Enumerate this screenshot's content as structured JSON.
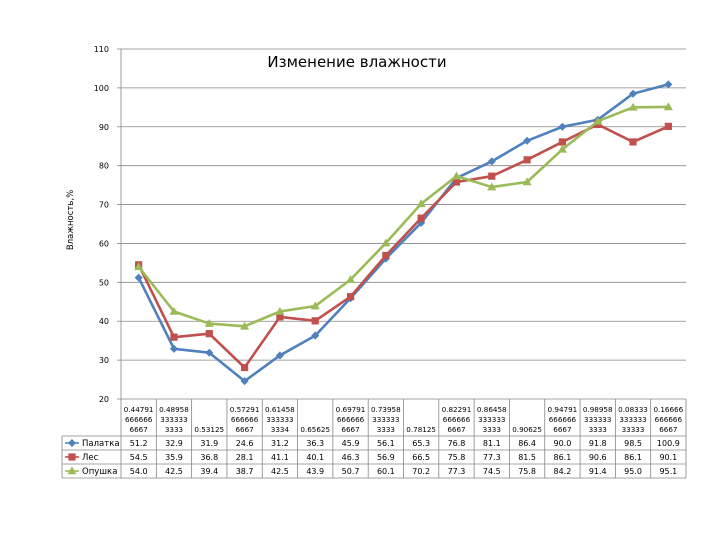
{
  "chart_data": {
    "type": "line",
    "title": "Изменение влажности",
    "ylabel": "Влажность,%",
    "xlabel": "",
    "ylim": [
      20,
      110
    ],
    "yticks": [
      "110",
      "100",
      "90",
      "80",
      "70",
      "60",
      "50",
      "40",
      "30",
      "20"
    ],
    "grid": true,
    "legend": "data-table",
    "categories": [
      [
        "0.44791",
        "666666",
        "6667"
      ],
      [
        "0.48958",
        "333333",
        "3333"
      ],
      [
        "0.53125"
      ],
      [
        "0.57291",
        "666666",
        "6667"
      ],
      [
        "0.61458",
        "333333",
        "3334"
      ],
      [
        "0.65625"
      ],
      [
        "0.69791",
        "666666",
        "6667"
      ],
      [
        "0.73958",
        "333333",
        "3333"
      ],
      [
        "0.78125"
      ],
      [
        "0.82291",
        "666666",
        "6667"
      ],
      [
        "0.86458",
        "333333",
        "3333"
      ],
      [
        "0.90625"
      ],
      [
        "0.94791",
        "666666",
        "6667"
      ],
      [
        "0.98958",
        "333333",
        "3333"
      ],
      [
        "0.08333",
        "333333",
        "33333"
      ],
      [
        "0.16666",
        "666666",
        "6667"
      ]
    ],
    "series": [
      {
        "name": "Палатка",
        "color": "#4F81BD",
        "marker": "diamond",
        "values": [
          51.2,
          32.9,
          31.9,
          24.6,
          31.2,
          36.3,
          45.9,
          56.1,
          65.3,
          76.8,
          81.1,
          86.4,
          90.0,
          91.8,
          98.5,
          100.9
        ]
      },
      {
        "name": "Лес",
        "color": "#C0504D",
        "marker": "square",
        "values": [
          54.5,
          35.9,
          36.8,
          28.1,
          41.1,
          40.1,
          46.3,
          56.9,
          66.5,
          75.8,
          77.3,
          81.5,
          86.1,
          90.6,
          86.1,
          90.1
        ]
      },
      {
        "name": "Опушка",
        "color": "#9BBB59",
        "marker": "triangle",
        "values": [
          54.0,
          42.5,
          39.4,
          38.7,
          42.5,
          43.9,
          50.7,
          60.1,
          70.2,
          77.3,
          74.5,
          75.8,
          84.2,
          91.4,
          95.0,
          95.1
        ]
      }
    ]
  }
}
